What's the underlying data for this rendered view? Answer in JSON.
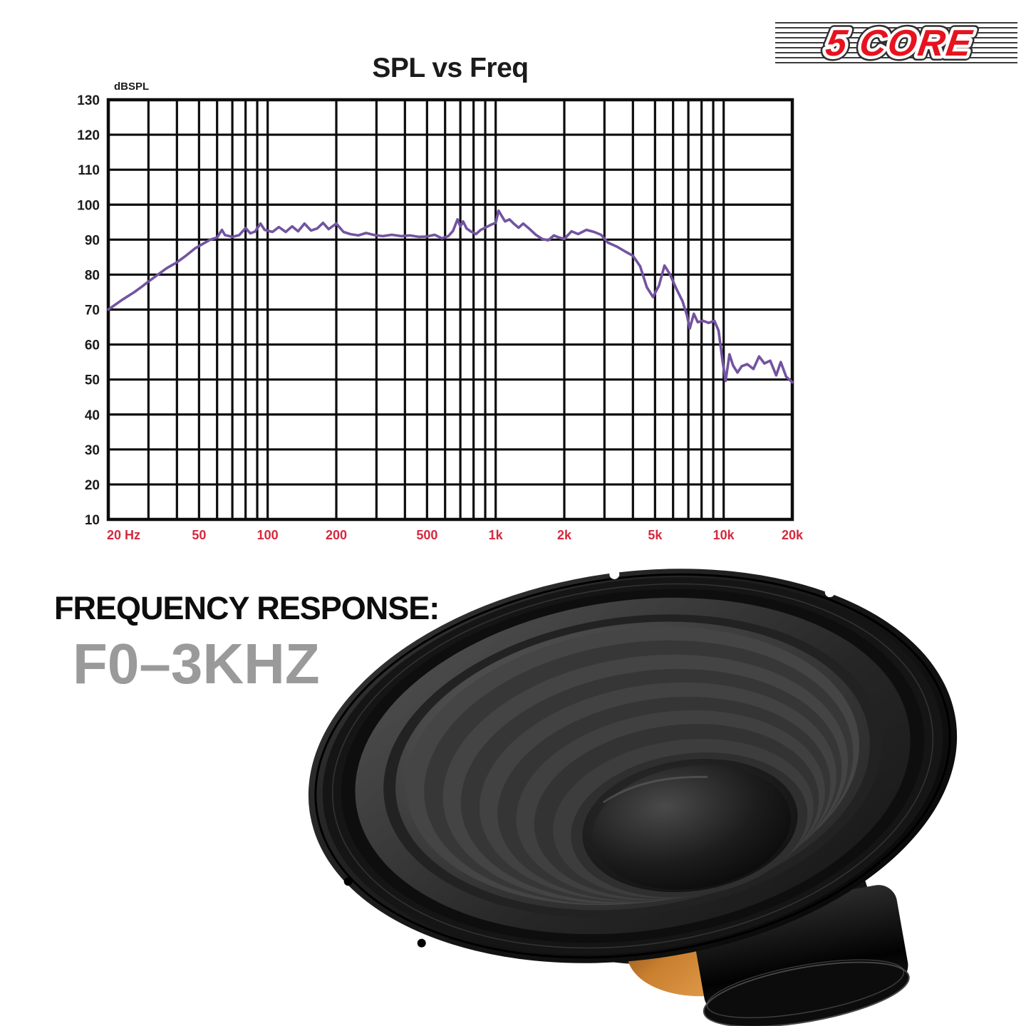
{
  "logo": {
    "text": "5 CORE",
    "color": "#e6131f"
  },
  "caption": {
    "line1": "FREQUENCY RESPONSE:",
    "line2": "F0–3KHZ",
    "line2_color": "#9a9a9a"
  },
  "chart_data": {
    "type": "line",
    "title": "SPL vs Freq",
    "ylabel": "dBSPL",
    "xlabel": "",
    "x_scale": "log",
    "xlim": [
      20,
      20000
    ],
    "ylim": [
      10,
      130
    ],
    "grid": true,
    "grid_color": "#0d0d0d",
    "tick_label_color_y": "#1b1b1b",
    "tick_label_color_x": "#d5293d",
    "y_ticks": [
      130,
      120,
      110,
      100,
      90,
      80,
      70,
      60,
      50,
      40,
      30,
      20,
      10
    ],
    "x_gridlines": [
      20,
      30,
      40,
      50,
      60,
      70,
      80,
      90,
      100,
      200,
      300,
      400,
      500,
      600,
      700,
      800,
      900,
      1000,
      2000,
      3000,
      4000,
      5000,
      6000,
      7000,
      8000,
      9000,
      10000,
      20000
    ],
    "x_tick_labels": [
      {
        "f": 20,
        "label": "20 Hz"
      },
      {
        "f": 50,
        "label": "50"
      },
      {
        "f": 100,
        "label": "100"
      },
      {
        "f": 200,
        "label": "200"
      },
      {
        "f": 500,
        "label": "500"
      },
      {
        "f": 1000,
        "label": "1k"
      },
      {
        "f": 2000,
        "label": "2k"
      },
      {
        "f": 5000,
        "label": "5k"
      },
      {
        "f": 10000,
        "label": "10k"
      },
      {
        "f": 20000,
        "label": "20k"
      }
    ],
    "legend": "none",
    "series": [
      {
        "name": "SPL",
        "color": "#7253a0",
        "points": [
          [
            20,
            70
          ],
          [
            23,
            72.8
          ],
          [
            26,
            75
          ],
          [
            28,
            76.5
          ],
          [
            30,
            78
          ],
          [
            33,
            80
          ],
          [
            36,
            81.8
          ],
          [
            40,
            83.5
          ],
          [
            44,
            85.5
          ],
          [
            48,
            87.5
          ],
          [
            52,
            88.8
          ],
          [
            56,
            90
          ],
          [
            60,
            90.6
          ],
          [
            63,
            92.8
          ],
          [
            65,
            91.3
          ],
          [
            70,
            90.8
          ],
          [
            75,
            91.3
          ],
          [
            80,
            93.3
          ],
          [
            84,
            91.8
          ],
          [
            88,
            92.3
          ],
          [
            93,
            94.6
          ],
          [
            97,
            92.8
          ],
          [
            105,
            92.2
          ],
          [
            112,
            93.6
          ],
          [
            120,
            92.2
          ],
          [
            128,
            93.8
          ],
          [
            136,
            92.4
          ],
          [
            145,
            94.6
          ],
          [
            155,
            92.6
          ],
          [
            165,
            93.2
          ],
          [
            175,
            94.8
          ],
          [
            185,
            93
          ],
          [
            200,
            94.6
          ],
          [
            215,
            92.2
          ],
          [
            230,
            91.6
          ],
          [
            250,
            91.2
          ],
          [
            270,
            91.9
          ],
          [
            295,
            91.3
          ],
          [
            320,
            91
          ],
          [
            350,
            91.4
          ],
          [
            385,
            91
          ],
          [
            420,
            91.2
          ],
          [
            460,
            90.8
          ],
          [
            500,
            90.9
          ],
          [
            540,
            91.4
          ],
          [
            580,
            90.4
          ],
          [
            620,
            91
          ],
          [
            650,
            92.5
          ],
          [
            680,
            95.8
          ],
          [
            700,
            93.8
          ],
          [
            720,
            95.2
          ],
          [
            745,
            93.2
          ],
          [
            780,
            92.3
          ],
          [
            820,
            91.6
          ],
          [
            860,
            92.8
          ],
          [
            900,
            93.4
          ],
          [
            950,
            94.2
          ],
          [
            1000,
            94.8
          ],
          [
            1030,
            98.3
          ],
          [
            1060,
            96.9
          ],
          [
            1100,
            95.2
          ],
          [
            1150,
            95.8
          ],
          [
            1200,
            94.6
          ],
          [
            1260,
            93.4
          ],
          [
            1320,
            94.6
          ],
          [
            1400,
            93.2
          ],
          [
            1500,
            91.4
          ],
          [
            1600,
            90.2
          ],
          [
            1700,
            89.8
          ],
          [
            1800,
            91.2
          ],
          [
            1900,
            90.6
          ],
          [
            2000,
            90.2
          ],
          [
            2150,
            92.4
          ],
          [
            2300,
            91.6
          ],
          [
            2500,
            92.8
          ],
          [
            2700,
            92.2
          ],
          [
            2900,
            91.4
          ],
          [
            3100,
            89.2
          ],
          [
            3400,
            88
          ],
          [
            3700,
            86.6
          ],
          [
            4000,
            85.4
          ],
          [
            4300,
            82.4
          ],
          [
            4600,
            76.4
          ],
          [
            4900,
            73.6
          ],
          [
            5200,
            76.8
          ],
          [
            5500,
            82.6
          ],
          [
            5800,
            80.2
          ],
          [
            6200,
            76
          ],
          [
            6600,
            72.4
          ],
          [
            6900,
            68.4
          ],
          [
            7100,
            64.6
          ],
          [
            7400,
            68.8
          ],
          [
            7700,
            66.4
          ],
          [
            8100,
            66.8
          ],
          [
            8600,
            66.2
          ],
          [
            9100,
            66.8
          ],
          [
            9500,
            64
          ],
          [
            9900,
            55
          ],
          [
            10200,
            49.6
          ],
          [
            10600,
            57.2
          ],
          [
            11000,
            54
          ],
          [
            11500,
            52
          ],
          [
            12000,
            53.8
          ],
          [
            12700,
            54.4
          ],
          [
            13500,
            53
          ],
          [
            14300,
            56.6
          ],
          [
            15100,
            54.6
          ],
          [
            16000,
            55.4
          ],
          [
            17000,
            51.2
          ],
          [
            17800,
            55
          ],
          [
            18800,
            50.8
          ],
          [
            20000,
            49.2
          ]
        ]
      }
    ]
  }
}
